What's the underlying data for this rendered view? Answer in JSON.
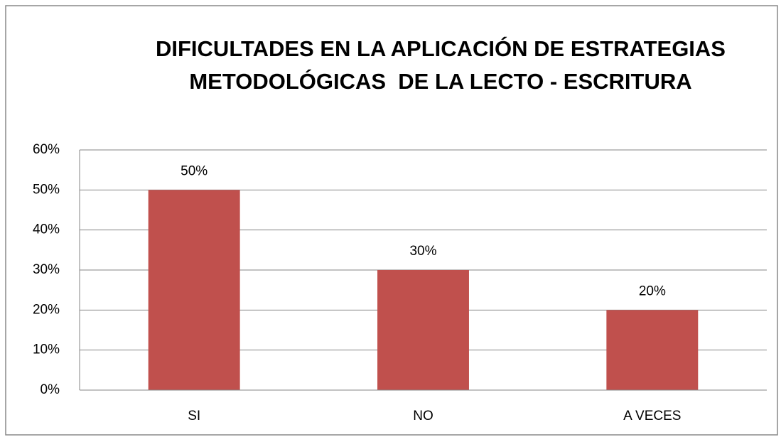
{
  "chart_data": {
    "type": "bar",
    "title": "DIFICULTADES EN LA APLICACIÓN DE ESTRATEGIAS METODOLÓGICAS  DE LA LECTO - ESCRITURA",
    "categories": [
      "SI",
      "NO",
      "A VECES"
    ],
    "values": [
      50,
      30,
      20
    ],
    "value_labels": [
      "50%",
      "30%",
      "20%"
    ],
    "color": "#c0504d",
    "ylim": [
      0,
      60
    ],
    "yticks": [
      {
        "value": 0,
        "label": "0%"
      },
      {
        "value": 10,
        "label": "10%"
      },
      {
        "value": 20,
        "label": "20%"
      },
      {
        "value": 30,
        "label": "30%"
      },
      {
        "value": 40,
        "label": "40%"
      },
      {
        "value": 50,
        "label": "50%"
      },
      {
        "value": 60,
        "label": "60%"
      }
    ],
    "grid": true
  }
}
